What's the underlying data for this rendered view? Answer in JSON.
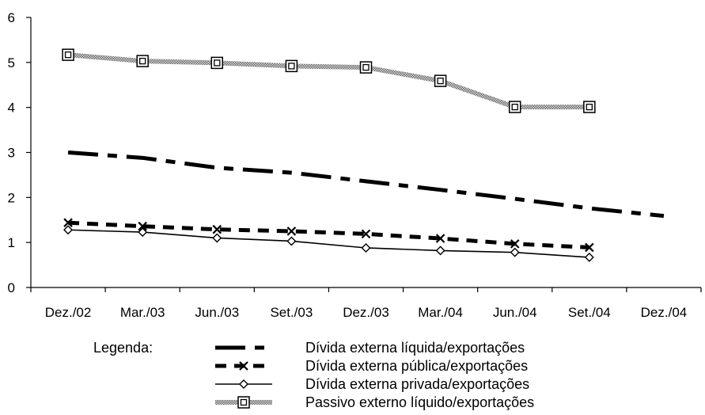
{
  "chart_data": {
    "type": "line",
    "categories": [
      "Dez./02",
      "Mar./03",
      "Jun./03",
      "Set./03",
      "Dez./03",
      "Mar./04",
      "Jun./04",
      "Set./04",
      "Dez./04"
    ],
    "ylim": [
      0,
      6
    ],
    "yticks": [
      0,
      1,
      2,
      3,
      4,
      5,
      6
    ],
    "grid": false,
    "legend_title": "Legenda:",
    "legend_position": "bottom",
    "series": [
      {
        "name": "Dívida externa líquida/exportações",
        "style": "dashdot-thick",
        "marker": "none",
        "color": "#000000",
        "values": [
          3.0,
          2.88,
          2.66,
          2.55,
          2.36,
          2.17,
          1.97,
          1.76,
          1.59
        ]
      },
      {
        "name": "Dívida externa pública/exportações",
        "style": "dashed-thick",
        "marker": "x",
        "color": "#000000",
        "values": [
          1.44,
          1.36,
          1.29,
          1.25,
          1.19,
          1.09,
          0.97,
          0.89,
          null
        ]
      },
      {
        "name": "Dívida externa privada/exportações",
        "style": "solid",
        "marker": "diamond",
        "color": "#000000",
        "values": [
          1.28,
          1.23,
          1.1,
          1.03,
          0.88,
          0.82,
          0.78,
          0.67,
          null
        ]
      },
      {
        "name": "Passivo externo líquido/exportações",
        "style": "hatched-gray",
        "marker": "square",
        "color": "#9a9a9a",
        "values": [
          5.17,
          5.03,
          4.99,
          4.92,
          4.89,
          4.59,
          4.01,
          4.01,
          null
        ]
      }
    ]
  }
}
